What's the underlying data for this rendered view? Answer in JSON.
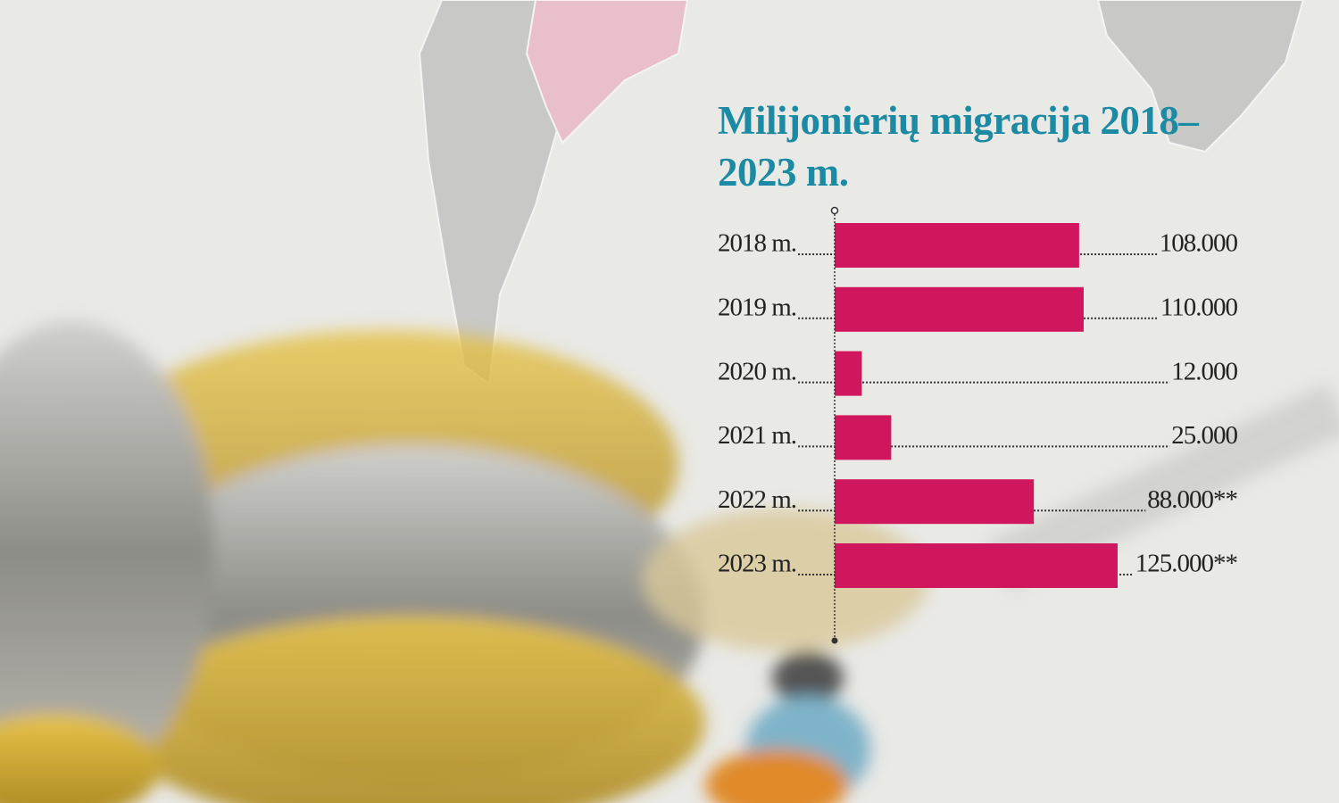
{
  "chart_data": {
    "type": "barh",
    "title": "Milijonierių migracija 2018–2023 m.",
    "categories": [
      "2018 m.",
      "2019 m.",
      "2020 m.",
      "2021 m.",
      "2022 m.",
      "2023 m."
    ],
    "values": [
      108000,
      110000,
      12000,
      25000,
      88000,
      125000
    ],
    "value_labels": [
      "108.000",
      "110.000",
      "12.000",
      "25.000",
      "88.000**",
      "125.000**"
    ],
    "color": "#d0175e",
    "xlim": [
      0,
      125000
    ]
  }
}
